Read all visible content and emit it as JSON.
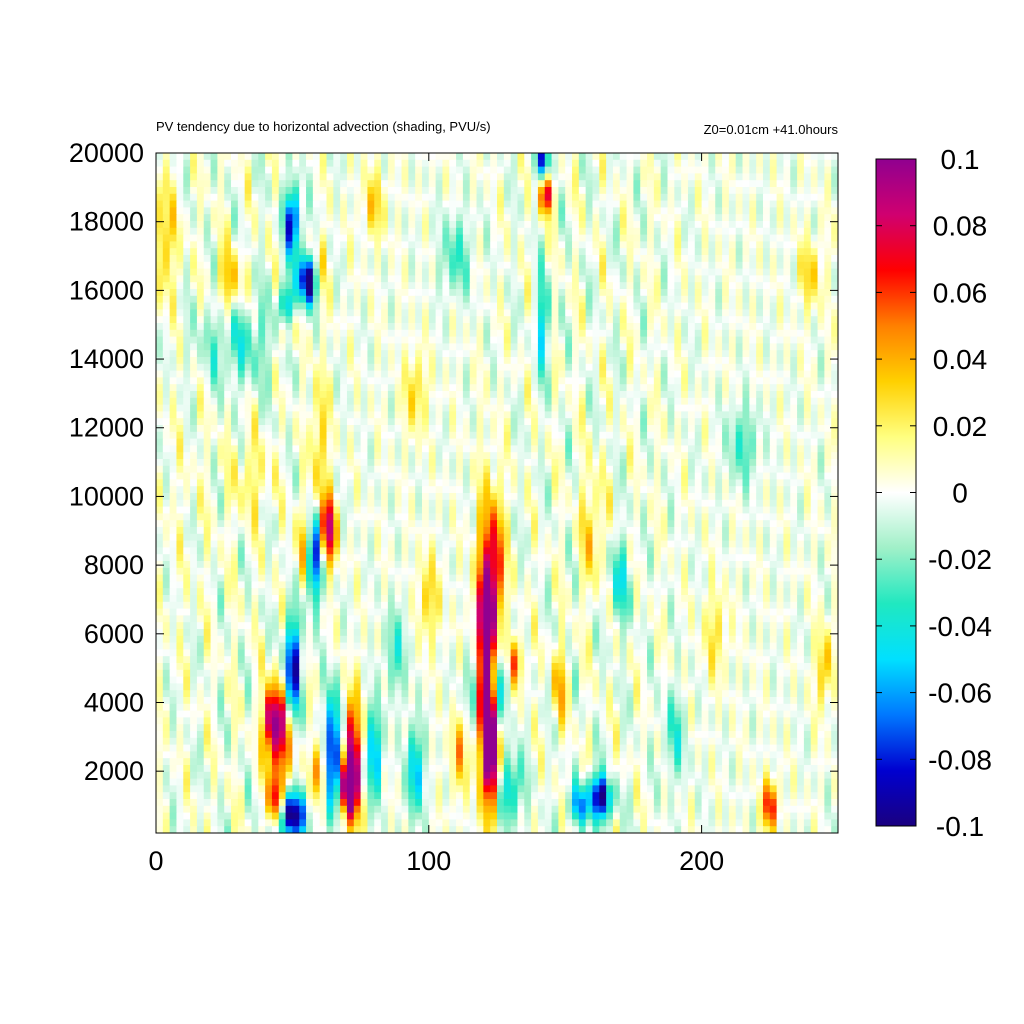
{
  "chart_data": {
    "type": "heatmap",
    "title": "PV tendency due to horizontal advection (shading, PVU/s)",
    "subtitle": "Z0=0.01cm   +41.0hours",
    "xlim": [
      0,
      250
    ],
    "ylim": [
      200,
      20000
    ],
    "x_ticks": [
      "0",
      "100",
      "200"
    ],
    "y_ticks": [
      "2000",
      "4000",
      "6000",
      "8000",
      "10000",
      "12000",
      "14000",
      "16000",
      "18000",
      "20000"
    ],
    "colorbar": {
      "range": [
        -0.1,
        0.1
      ],
      "ticks": [
        "0.1",
        "0.08",
        "0.06",
        "0.04",
        "0.02",
        "0",
        "-0.02",
        "-0.04",
        "-0.06",
        "-0.08",
        "-0.1"
      ],
      "colors": [
        "#1a0080",
        "#0000d0",
        "#0078ff",
        "#00e0ff",
        "#20e8c0",
        "#a0f0c8",
        "#ffffff",
        "#ffff80",
        "#ffd000",
        "#ff8000",
        "#ff0000",
        "#d00070",
        "#900090"
      ]
    },
    "grid": false,
    "features": [
      {
        "x": 2,
        "y": 17500,
        "sx": 4,
        "sy": 1200,
        "v": 0.035
      },
      {
        "x": 27,
        "y": 16200,
        "sx": 3,
        "sy": 700,
        "v": 0.04
      },
      {
        "x": 50,
        "y": 18000,
        "sx": 2,
        "sy": 700,
        "v": -0.09
      },
      {
        "x": 56,
        "y": 16300,
        "sx": 3,
        "sy": 500,
        "v": -0.11
      },
      {
        "x": 48,
        "y": 15400,
        "sx": 2,
        "sy": 500,
        "v": -0.08
      },
      {
        "x": 48,
        "y": 15000,
        "sx": 2,
        "sy": 500,
        "v": 0.06
      },
      {
        "x": 60,
        "y": 16500,
        "sx": 2,
        "sy": 600,
        "v": 0.05
      },
      {
        "x": 30,
        "y": 14500,
        "sx": 10,
        "sy": 900,
        "v": -0.03
      },
      {
        "x": 60,
        "y": 11500,
        "sx": 2,
        "sy": 1500,
        "v": 0.035
      },
      {
        "x": 63,
        "y": 9000,
        "sx": 2,
        "sy": 700,
        "v": 0.09
      },
      {
        "x": 58,
        "y": 8200,
        "sx": 2,
        "sy": 900,
        "v": -0.09
      },
      {
        "x": 54,
        "y": 8500,
        "sx": 2,
        "sy": 800,
        "v": 0.04
      },
      {
        "x": 50,
        "y": 5000,
        "sx": 2,
        "sy": 1000,
        "v": -0.1
      },
      {
        "x": 45,
        "y": 3000,
        "sx": 3,
        "sy": 1100,
        "v": 0.08
      },
      {
        "x": 42,
        "y": 3500,
        "sx": 2,
        "sy": 600,
        "v": 0.06
      },
      {
        "x": 49,
        "y": 700,
        "sx": 4,
        "sy": 500,
        "v": -0.11
      },
      {
        "x": 44,
        "y": 1000,
        "sx": 2,
        "sy": 500,
        "v": 0.09
      },
      {
        "x": 65,
        "y": 2500,
        "sx": 2,
        "sy": 1200,
        "v": -0.1
      },
      {
        "x": 72,
        "y": 2200,
        "sx": 2,
        "sy": 1300,
        "v": 0.11
      },
      {
        "x": 70,
        "y": 1500,
        "sx": 2,
        "sy": 500,
        "v": 0.09
      },
      {
        "x": 80,
        "y": 2500,
        "sx": 2,
        "sy": 900,
        "v": -0.06
      },
      {
        "x": 95,
        "y": 2000,
        "sx": 2,
        "sy": 900,
        "v": -0.06
      },
      {
        "x": 60,
        "y": 2000,
        "sx": 2,
        "sy": 600,
        "v": 0.05
      },
      {
        "x": 121,
        "y": 5500,
        "sx": 2.5,
        "sy": 2500,
        "v": 0.12
      },
      {
        "x": 123,
        "y": 2500,
        "sx": 2,
        "sy": 1000,
        "v": 0.09
      },
      {
        "x": 125,
        "y": 8000,
        "sx": 2,
        "sy": 1400,
        "v": 0.06
      },
      {
        "x": 126,
        "y": 4500,
        "sx": 2,
        "sy": 800,
        "v": -0.05
      },
      {
        "x": 132,
        "y": 5200,
        "sx": 2,
        "sy": 500,
        "v": 0.05
      },
      {
        "x": 116,
        "y": 4500,
        "sx": 2,
        "sy": 800,
        "v": -0.04
      },
      {
        "x": 130,
        "y": 1500,
        "sx": 3,
        "sy": 700,
        "v": -0.05
      },
      {
        "x": 111,
        "y": 2500,
        "sx": 2,
        "sy": 800,
        "v": 0.04
      },
      {
        "x": 143,
        "y": 18800,
        "sx": 1.5,
        "sy": 400,
        "v": 0.09
      },
      {
        "x": 142,
        "y": 19800,
        "sx": 2,
        "sy": 400,
        "v": -0.07
      },
      {
        "x": 142,
        "y": 15000,
        "sx": 1.5,
        "sy": 1000,
        "v": -0.05
      },
      {
        "x": 163,
        "y": 1300,
        "sx": 3,
        "sy": 500,
        "v": -0.11
      },
      {
        "x": 155,
        "y": 1000,
        "sx": 3,
        "sy": 400,
        "v": -0.05
      },
      {
        "x": 165,
        "y": 1800,
        "sx": 2,
        "sy": 400,
        "v": 0.03
      },
      {
        "x": 225,
        "y": 1000,
        "sx": 2,
        "sy": 500,
        "v": 0.07
      },
      {
        "x": 245,
        "y": 5000,
        "sx": 2,
        "sy": 800,
        "v": 0.04
      },
      {
        "x": 5,
        "y": 10000,
        "sx": 15,
        "sy": 3000,
        "v": 0.003
      },
      {
        "x": 35,
        "y": 10500,
        "sx": 5,
        "sy": 800,
        "v": 0.02
      },
      {
        "x": 95,
        "y": 13000,
        "sx": 3,
        "sy": 800,
        "v": 0.03
      },
      {
        "x": 110,
        "y": 17000,
        "sx": 4,
        "sy": 800,
        "v": -0.03
      },
      {
        "x": 160,
        "y": 9000,
        "sx": 3,
        "sy": 1200,
        "v": 0.03
      },
      {
        "x": 170,
        "y": 7500,
        "sx": 3,
        "sy": 900,
        "v": -0.035
      },
      {
        "x": 205,
        "y": 6000,
        "sx": 3,
        "sy": 900,
        "v": 0.025
      },
      {
        "x": 215,
        "y": 11500,
        "sx": 4,
        "sy": 800,
        "v": -0.03
      },
      {
        "x": 240,
        "y": 16500,
        "sx": 3,
        "sy": 700,
        "v": 0.03
      },
      {
        "x": 80,
        "y": 18500,
        "sx": 3,
        "sy": 700,
        "v": 0.03
      },
      {
        "x": 100,
        "y": 7000,
        "sx": 3,
        "sy": 900,
        "v": 0.03
      },
      {
        "x": 88,
        "y": 5500,
        "sx": 3,
        "sy": 900,
        "v": -0.03
      },
      {
        "x": 190,
        "y": 3000,
        "sx": 3,
        "sy": 900,
        "v": -0.03
      },
      {
        "x": 148,
        "y": 4500,
        "sx": 2,
        "sy": 800,
        "v": 0.035
      }
    ]
  }
}
